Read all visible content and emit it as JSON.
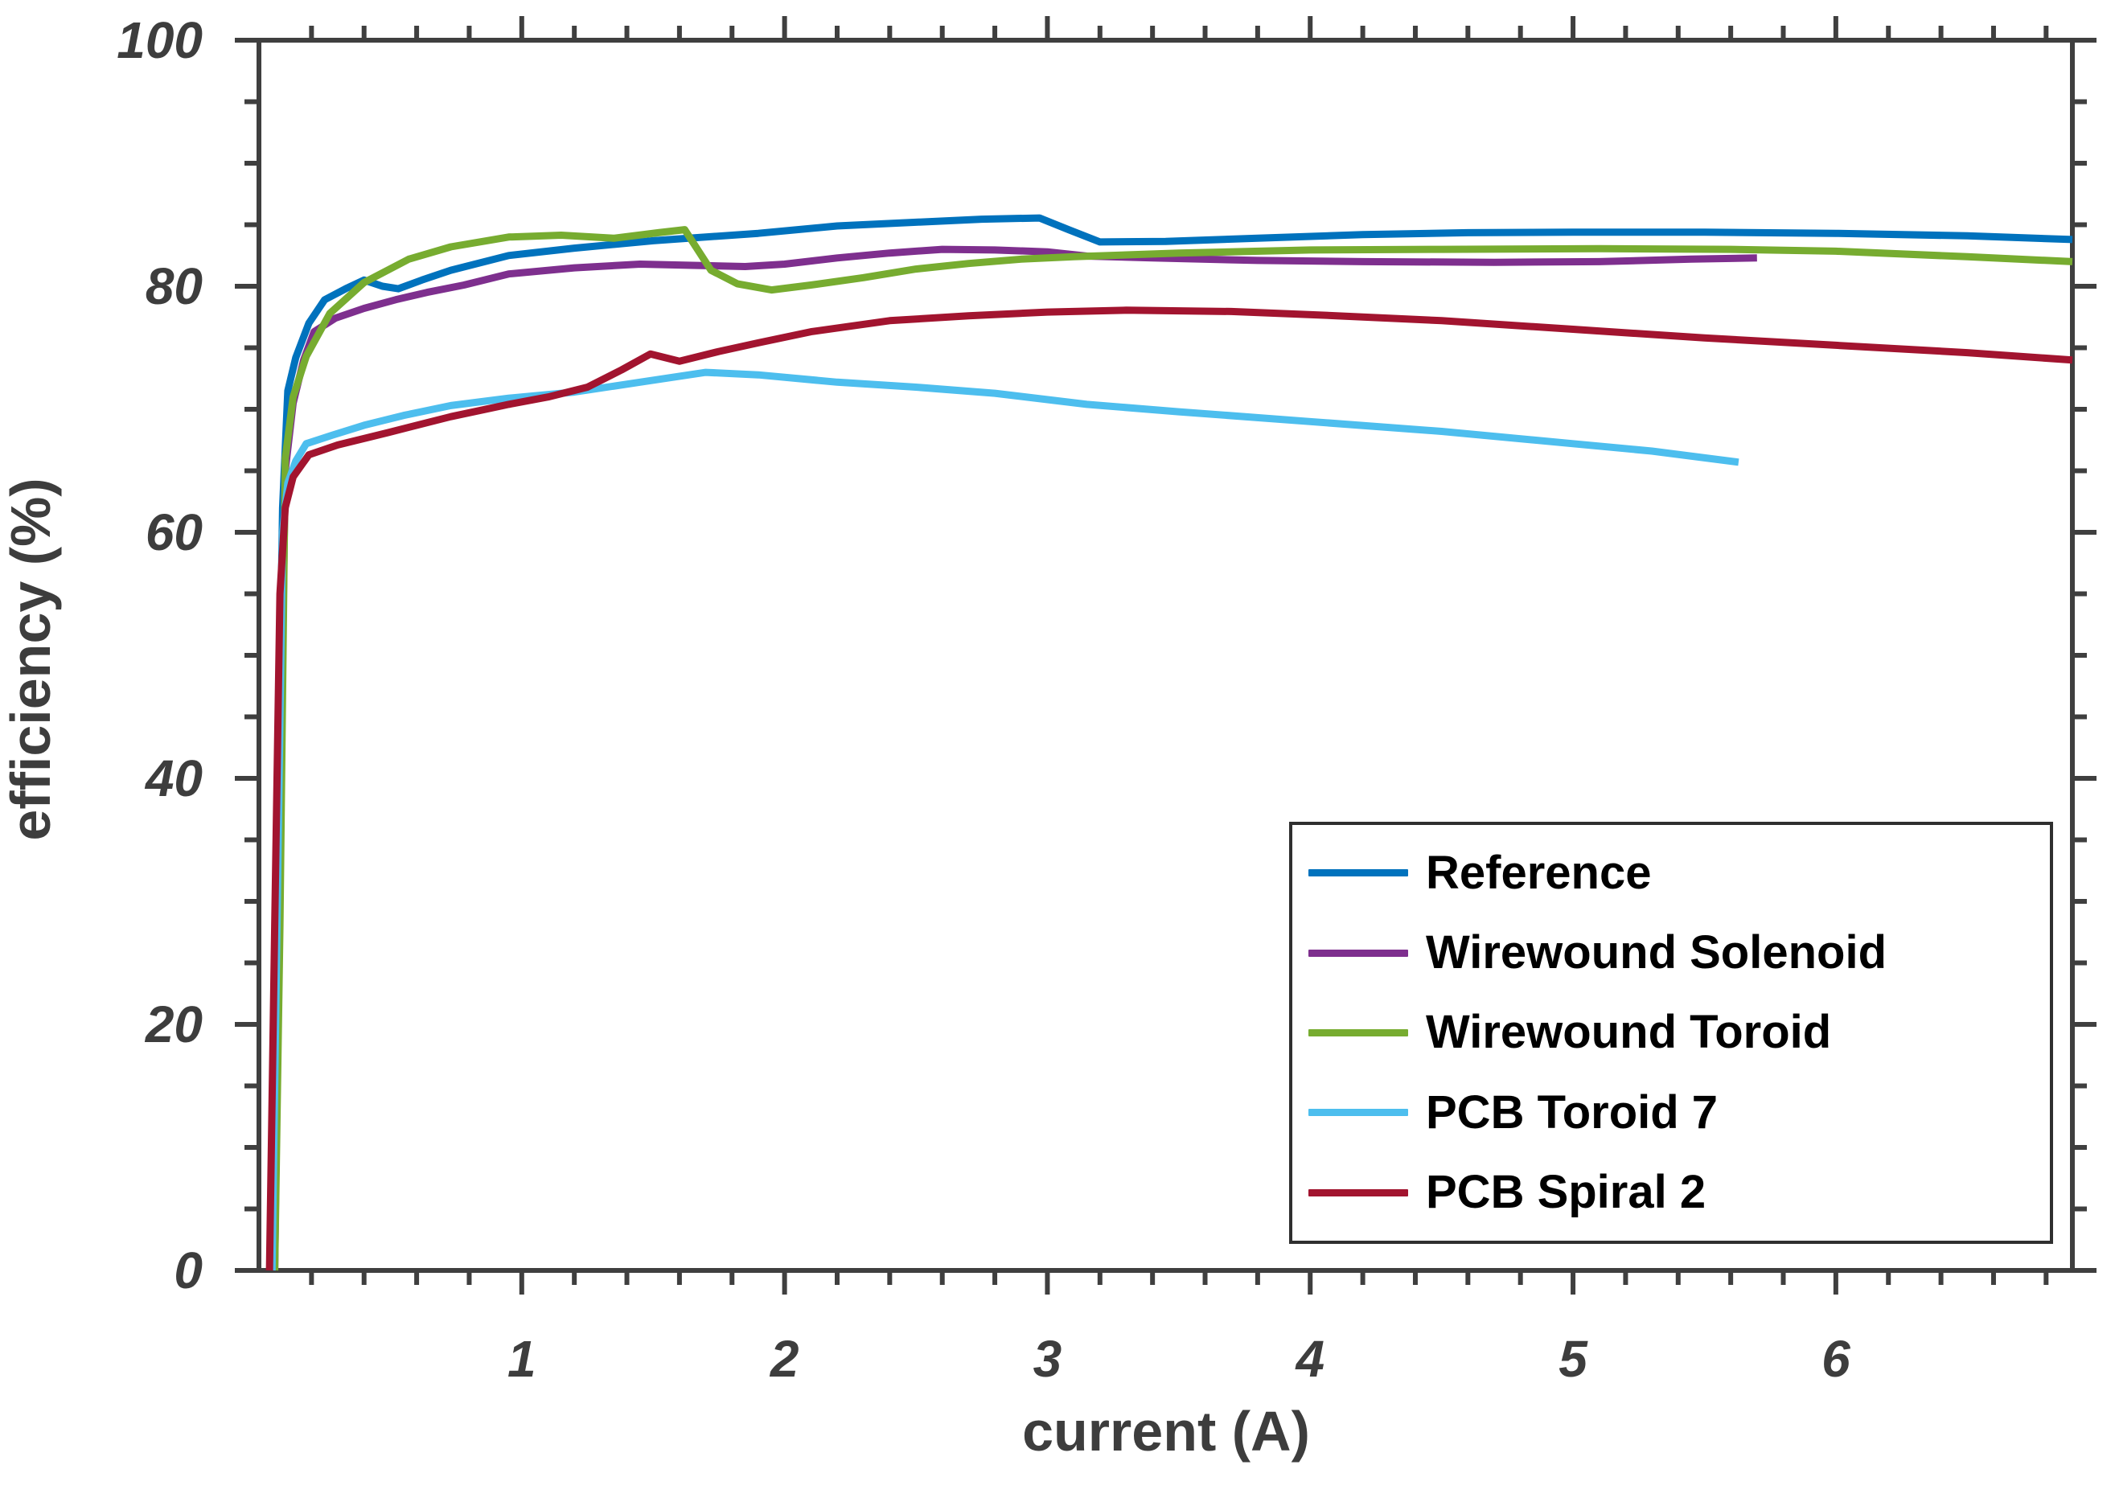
{
  "chart_data": {
    "type": "line",
    "title": "",
    "xlabel": "current (A)",
    "ylabel": "efficiency (%)",
    "xlim": [
      0,
      6.9
    ],
    "ylim": [
      0,
      100
    ],
    "x_ticks": [
      1,
      2,
      3,
      4,
      5,
      6
    ],
    "x_tick_labels": [
      "1",
      "2",
      "3",
      "4",
      "5",
      "6"
    ],
    "x_minor_step": 0.2,
    "y_ticks": [
      0,
      20,
      40,
      60,
      80,
      100
    ],
    "y_tick_labels": [
      "0",
      "20",
      "40",
      "60",
      "80",
      "100"
    ],
    "y_minor_step": 5,
    "grid": false,
    "tick_direction": "out",
    "box": true,
    "axis_color": "#3f3f3f",
    "tick_label_color": "#3d3d3d",
    "legend_position": "bottom-right",
    "series": [
      {
        "name": "Reference",
        "color": "#0072BD",
        "points": [
          [
            0.05,
            0
          ],
          [
            0.07,
            35
          ],
          [
            0.09,
            62
          ],
          [
            0.11,
            71.5
          ],
          [
            0.14,
            74.2
          ],
          [
            0.19,
            77.0
          ],
          [
            0.25,
            78.9
          ],
          [
            0.33,
            79.8
          ],
          [
            0.4,
            80.5
          ],
          [
            0.47,
            80.0
          ],
          [
            0.53,
            79.8
          ],
          [
            0.62,
            80.5
          ],
          [
            0.73,
            81.3
          ],
          [
            0.95,
            82.5
          ],
          [
            1.2,
            83.1
          ],
          [
            1.5,
            83.7
          ],
          [
            1.9,
            84.3
          ],
          [
            2.2,
            84.9
          ],
          [
            2.5,
            85.2
          ],
          [
            2.75,
            85.45
          ],
          [
            2.97,
            85.55
          ],
          [
            3.08,
            84.6
          ],
          [
            3.2,
            83.6
          ],
          [
            3.45,
            83.65
          ],
          [
            3.8,
            83.9
          ],
          [
            4.2,
            84.2
          ],
          [
            4.6,
            84.35
          ],
          [
            5.0,
            84.4
          ],
          [
            5.5,
            84.4
          ],
          [
            6.0,
            84.3
          ],
          [
            6.5,
            84.1
          ],
          [
            6.9,
            83.8
          ]
        ]
      },
      {
        "name": "Wirewound Solenoid",
        "color": "#7E2F8E",
        "points": [
          [
            0.06,
            0
          ],
          [
            0.08,
            35
          ],
          [
            0.1,
            65
          ],
          [
            0.13,
            70.5
          ],
          [
            0.17,
            74.0
          ],
          [
            0.21,
            76.3
          ],
          [
            0.29,
            77.4
          ],
          [
            0.4,
            78.2
          ],
          [
            0.52,
            78.9
          ],
          [
            0.64,
            79.5
          ],
          [
            0.78,
            80.1
          ],
          [
            0.95,
            81.0
          ],
          [
            1.2,
            81.5
          ],
          [
            1.45,
            81.8
          ],
          [
            1.65,
            81.7
          ],
          [
            1.85,
            81.6
          ],
          [
            2.0,
            81.8
          ],
          [
            2.2,
            82.3
          ],
          [
            2.4,
            82.7
          ],
          [
            2.6,
            83.0
          ],
          [
            2.8,
            82.95
          ],
          [
            3.0,
            82.8
          ],
          [
            3.15,
            82.45
          ],
          [
            3.4,
            82.3
          ],
          [
            3.8,
            82.1
          ],
          [
            4.2,
            82.0
          ],
          [
            4.7,
            81.95
          ],
          [
            5.1,
            82.0
          ],
          [
            5.45,
            82.2
          ],
          [
            5.7,
            82.3
          ]
        ]
      },
      {
        "name": "Wirewound Toroid",
        "color": "#77AC30",
        "points": [
          [
            0.06,
            0
          ],
          [
            0.08,
            28
          ],
          [
            0.1,
            66
          ],
          [
            0.13,
            71.0
          ],
          [
            0.18,
            74.3
          ],
          [
            0.27,
            77.8
          ],
          [
            0.4,
            80.3
          ],
          [
            0.57,
            82.2
          ],
          [
            0.73,
            83.2
          ],
          [
            0.95,
            84.0
          ],
          [
            1.15,
            84.15
          ],
          [
            1.35,
            83.9
          ],
          [
            1.52,
            84.35
          ],
          [
            1.62,
            84.6
          ],
          [
            1.72,
            81.3
          ],
          [
            1.82,
            80.2
          ],
          [
            1.95,
            79.7
          ],
          [
            2.1,
            80.1
          ],
          [
            2.3,
            80.7
          ],
          [
            2.5,
            81.4
          ],
          [
            2.7,
            81.85
          ],
          [
            2.9,
            82.2
          ],
          [
            3.1,
            82.4
          ],
          [
            3.5,
            82.7
          ],
          [
            4.0,
            82.95
          ],
          [
            4.5,
            83.0
          ],
          [
            5.1,
            83.05
          ],
          [
            5.6,
            83.0
          ],
          [
            6.0,
            82.85
          ],
          [
            6.5,
            82.4
          ],
          [
            6.9,
            82.0
          ]
        ]
      },
      {
        "name": "PCB Toroid 7",
        "color": "#4DBEEE",
        "points": [
          [
            0.05,
            0
          ],
          [
            0.07,
            30
          ],
          [
            0.09,
            60
          ],
          [
            0.11,
            64.0
          ],
          [
            0.14,
            65.8
          ],
          [
            0.18,
            67.2
          ],
          [
            0.28,
            67.9
          ],
          [
            0.4,
            68.7
          ],
          [
            0.55,
            69.5
          ],
          [
            0.73,
            70.3
          ],
          [
            0.95,
            70.9
          ],
          [
            1.2,
            71.4
          ],
          [
            1.45,
            72.2
          ],
          [
            1.7,
            73.0
          ],
          [
            1.9,
            72.8
          ],
          [
            2.2,
            72.2
          ],
          [
            2.5,
            71.8
          ],
          [
            2.8,
            71.3
          ],
          [
            3.15,
            70.4
          ],
          [
            3.5,
            69.8
          ],
          [
            4.0,
            69.0
          ],
          [
            4.5,
            68.2
          ],
          [
            5.0,
            67.2
          ],
          [
            5.3,
            66.6
          ],
          [
            5.63,
            65.7
          ]
        ]
      },
      {
        "name": "PCB Spiral 2",
        "color": "#A2142F",
        "points": [
          [
            0.04,
            0
          ],
          [
            0.06,
            28
          ],
          [
            0.08,
            55
          ],
          [
            0.1,
            62.0
          ],
          [
            0.13,
            64.5
          ],
          [
            0.19,
            66.3
          ],
          [
            0.3,
            67.1
          ],
          [
            0.49,
            68.1
          ],
          [
            0.73,
            69.4
          ],
          [
            0.95,
            70.4
          ],
          [
            1.1,
            71.0
          ],
          [
            1.25,
            71.8
          ],
          [
            1.38,
            73.2
          ],
          [
            1.49,
            74.5
          ],
          [
            1.6,
            73.9
          ],
          [
            1.75,
            74.7
          ],
          [
            1.9,
            75.4
          ],
          [
            2.1,
            76.3
          ],
          [
            2.4,
            77.2
          ],
          [
            2.7,
            77.6
          ],
          [
            3.0,
            77.9
          ],
          [
            3.3,
            78.05
          ],
          [
            3.7,
            77.95
          ],
          [
            4.1,
            77.6
          ],
          [
            4.5,
            77.2
          ],
          [
            5.0,
            76.5
          ],
          [
            5.5,
            75.8
          ],
          [
            6.0,
            75.2
          ],
          [
            6.5,
            74.6
          ],
          [
            6.9,
            74.0
          ]
        ]
      }
    ]
  },
  "legend": {
    "labels": [
      "Reference",
      "Wirewound Solenoid",
      "Wirewound Toroid",
      "PCB Toroid 7",
      "PCB Spiral 2"
    ]
  },
  "labels": {
    "xlabel": "current (A)",
    "ylabel": "efficiency (%)"
  }
}
